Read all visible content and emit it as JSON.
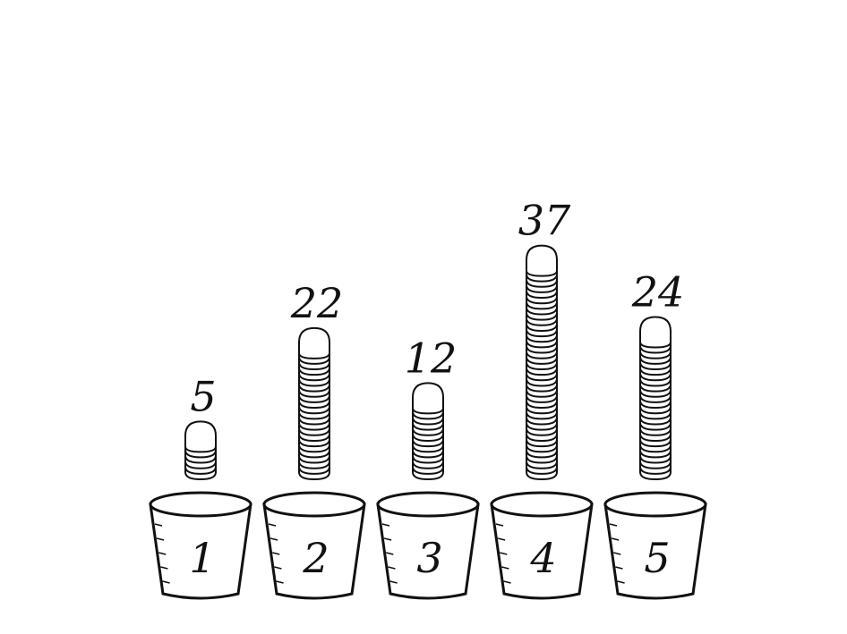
{
  "colors": {
    "ink": "#111111",
    "paper": "#ffffff"
  },
  "cups": [
    {
      "number": "1",
      "coins": 5,
      "count_label": "5"
    },
    {
      "number": "2",
      "coins": 22,
      "count_label": "22"
    },
    {
      "number": "3",
      "coins": 12,
      "count_label": "12"
    },
    {
      "number": "4",
      "coins": 37,
      "count_label": "37"
    },
    {
      "number": "5",
      "coins": 24,
      "count_label": "24"
    }
  ]
}
